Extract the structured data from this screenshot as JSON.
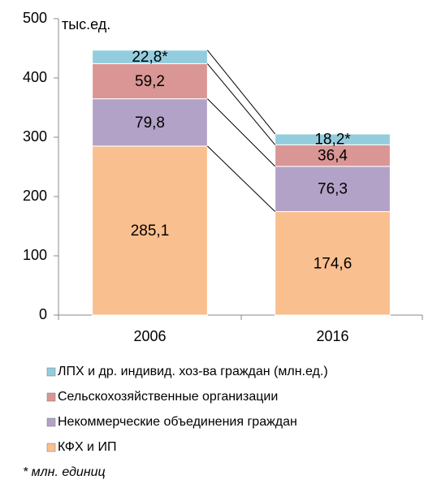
{
  "chart_data": {
    "type": "stacked_bar",
    "y_axis_label": "тыс.ед.",
    "categories": [
      "2006",
      "2016"
    ],
    "series": [
      {
        "name": "КФХ и ИП",
        "color": "#f9bf8f",
        "values": [
          285.1,
          174.6
        ],
        "value_labels": [
          "285,1",
          "174,6"
        ]
      },
      {
        "name": "Некоммерческие объединения граждан",
        "color": "#b3a2c7",
        "values": [
          79.8,
          76.3
        ],
        "value_labels": [
          "79,8",
          "76,3"
        ]
      },
      {
        "name": "Сельскохозяйственные организации",
        "color": "#d99694",
        "values": [
          59.2,
          36.4
        ],
        "value_labels": [
          "59,2",
          "36,4"
        ]
      },
      {
        "name": "ЛПХ и др. индивид. хоз-ва граждан (млн.ед.)",
        "color": "#93cddd",
        "values": [
          22.8,
          18.2
        ],
        "value_labels": [
          "22,8*",
          "18,2*"
        ]
      }
    ],
    "ylim": [
      0,
      500
    ],
    "yticks": [
      0,
      100,
      200,
      300,
      400,
      500
    ],
    "footnote": "* млн. единиц"
  }
}
